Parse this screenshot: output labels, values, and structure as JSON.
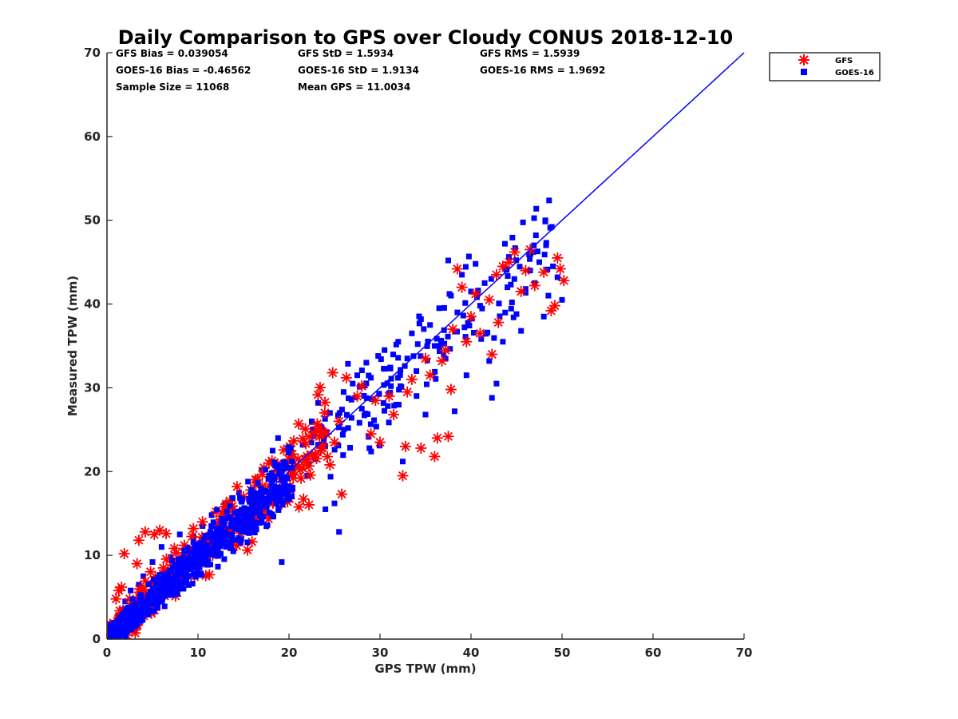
{
  "chart_data": {
    "type": "scatter",
    "title": "Daily Comparison to GPS over Cloudy CONUS 2018-12-10",
    "xlabel": "GPS TPW (mm)",
    "ylabel": "Measured TPW (mm)",
    "xlim": [
      0,
      70
    ],
    "ylim": [
      0,
      70
    ],
    "xticks": [
      0,
      10,
      20,
      30,
      40,
      50,
      60,
      70
    ],
    "yticks": [
      0,
      10,
      20,
      30,
      40,
      50,
      60,
      70
    ],
    "grid": false,
    "legend_position": "outside-top-right",
    "stats": [
      [
        "GFS Bias = 0.039054",
        "GFS StD = 1.5934",
        "GFS RMS = 1.5939"
      ],
      [
        "GOES-16 Bias = -0.46562",
        "GOES-16 StD = 1.9134",
        "GOES-16 RMS = 1.9692"
      ],
      [
        "Sample Size = 11068",
        "Mean GPS = 11.0034"
      ]
    ],
    "reference_line": {
      "x": [
        0,
        70
      ],
      "y": [
        0,
        70
      ],
      "color": "#0000ff"
    },
    "series": [
      {
        "name": "GFS",
        "marker": "asterisk",
        "color": "#ff0000",
        "sample_points": [
          [
            0.3,
            1.2
          ],
          [
            0.8,
            1.8
          ],
          [
            1.0,
            4.8
          ],
          [
            1.3,
            5.8
          ],
          [
            1.6,
            6.2
          ],
          [
            1.9,
            10.2
          ],
          [
            2.5,
            4.8
          ],
          [
            3.3,
            9.0
          ],
          [
            3.5,
            11.8
          ],
          [
            4.2,
            12.8
          ],
          [
            5.2,
            12.5
          ],
          [
            5.8,
            13.0
          ],
          [
            6.5,
            12.6
          ],
          [
            6.2,
            8.5
          ],
          [
            7.2,
            9.2
          ],
          [
            8.5,
            11.2
          ],
          [
            9.5,
            13.2
          ],
          [
            10.5,
            14.0
          ],
          [
            12.0,
            15.2
          ],
          [
            13.5,
            16.5
          ],
          [
            14.3,
            18.2
          ],
          [
            15.0,
            17.0
          ],
          [
            16.5,
            19.0
          ],
          [
            17.8,
            21.0
          ],
          [
            19.5,
            20.5
          ],
          [
            21.0,
            21.5
          ],
          [
            22.5,
            22.0
          ],
          [
            23.5,
            22.5
          ],
          [
            24.5,
            20.8
          ],
          [
            25.0,
            23.5
          ],
          [
            24.8,
            31.8
          ],
          [
            25.5,
            26.0
          ],
          [
            25.8,
            17.3
          ],
          [
            26.3,
            31.2
          ],
          [
            27.5,
            29.0
          ],
          [
            28.0,
            30.2
          ],
          [
            29.0,
            24.5
          ],
          [
            29.5,
            28.5
          ],
          [
            30.0,
            23.5
          ],
          [
            31.0,
            29.0
          ],
          [
            31.5,
            26.8
          ],
          [
            32.5,
            19.5
          ],
          [
            32.8,
            23.0
          ],
          [
            33.0,
            29.5
          ],
          [
            33.5,
            31.0
          ],
          [
            34.5,
            22.8
          ],
          [
            35.0,
            33.5
          ],
          [
            35.5,
            31.5
          ],
          [
            36.0,
            21.8
          ],
          [
            36.3,
            24.0
          ],
          [
            36.8,
            33.2
          ],
          [
            37.2,
            34.5
          ],
          [
            37.5,
            24.2
          ],
          [
            37.8,
            29.8
          ],
          [
            38.0,
            37.0
          ],
          [
            38.5,
            44.2
          ],
          [
            39.0,
            42.0
          ],
          [
            39.5,
            35.5
          ],
          [
            40.0,
            38.5
          ],
          [
            40.5,
            41.2
          ],
          [
            41.0,
            36.5
          ],
          [
            42.0,
            40.5
          ],
          [
            42.3,
            34.0
          ],
          [
            42.8,
            43.5
          ],
          [
            43.0,
            37.8
          ],
          [
            43.5,
            44.5
          ],
          [
            44.2,
            45.0
          ],
          [
            44.8,
            46.2
          ],
          [
            45.5,
            41.5
          ],
          [
            46.0,
            44.0
          ],
          [
            46.5,
            46.5
          ],
          [
            47.0,
            42.2
          ],
          [
            48.0,
            43.8
          ],
          [
            48.8,
            39.2
          ],
          [
            49.2,
            39.8
          ],
          [
            49.5,
            45.5
          ],
          [
            49.8,
            44.2
          ],
          [
            50.2,
            42.8
          ]
        ]
      },
      {
        "name": "GOES-16",
        "marker": "square",
        "color": "#0000ff",
        "sample_points": [
          [
            0.4,
            0.9
          ],
          [
            0.9,
            1.6
          ],
          [
            1.2,
            2.8
          ],
          [
            1.6,
            3.5
          ],
          [
            2.0,
            4.5
          ],
          [
            2.6,
            5.8
          ],
          [
            3.0,
            3.8
          ],
          [
            3.5,
            6.5
          ],
          [
            4.0,
            7.5
          ],
          [
            4.5,
            5.2
          ],
          [
            5.0,
            9.2
          ],
          [
            5.5,
            6.8
          ],
          [
            6.0,
            11.0
          ],
          [
            6.5,
            8.2
          ],
          [
            7.0,
            9.8
          ],
          [
            7.5,
            7.2
          ],
          [
            8.0,
            12.5
          ],
          [
            8.5,
            9.5
          ],
          [
            9.0,
            10.8
          ],
          [
            9.5,
            12.2
          ],
          [
            10.0,
            8.8
          ],
          [
            10.5,
            13.5
          ],
          [
            11.0,
            11.2
          ],
          [
            11.5,
            14.8
          ],
          [
            12.0,
            10.2
          ],
          [
            12.5,
            13.2
          ],
          [
            13.0,
            16.2
          ],
          [
            13.5,
            12.0
          ],
          [
            14.0,
            15.0
          ],
          [
            14.5,
            17.5
          ],
          [
            15.0,
            14.2
          ],
          [
            15.5,
            18.8
          ],
          [
            16.0,
            16.5
          ],
          [
            17.0,
            20.2
          ],
          [
            17.5,
            16.0
          ],
          [
            18.2,
            22.5
          ],
          [
            18.8,
            24.0
          ],
          [
            19.2,
            9.2
          ],
          [
            19.5,
            18.2
          ],
          [
            20.5,
            21.0
          ],
          [
            21.5,
            23.2
          ],
          [
            22.0,
            19.5
          ],
          [
            22.5,
            26.0
          ],
          [
            23.2,
            28.2
          ],
          [
            23.8,
            23.5
          ],
          [
            24.0,
            15.5
          ],
          [
            24.5,
            27.0
          ],
          [
            25.0,
            16.2
          ],
          [
            25.5,
            12.8
          ],
          [
            26.0,
            29.5
          ],
          [
            26.5,
            25.2
          ],
          [
            27.0,
            30.5
          ],
          [
            27.5,
            31.5
          ],
          [
            28.0,
            27.5
          ],
          [
            28.5,
            33.0
          ],
          [
            29.0,
            31.2
          ],
          [
            29.8,
            33.8
          ],
          [
            30.5,
            34.5
          ],
          [
            31.2,
            30.2
          ],
          [
            31.8,
            28.0
          ],
          [
            32.0,
            35.5
          ],
          [
            32.5,
            21.2
          ],
          [
            33.0,
            33.5
          ],
          [
            33.5,
            36.5
          ],
          [
            34.0,
            32.0
          ],
          [
            34.5,
            38.2
          ],
          [
            35.0,
            26.8
          ],
          [
            35.5,
            37.5
          ],
          [
            36.0,
            35.0
          ],
          [
            36.5,
            39.5
          ],
          [
            37.0,
            34.0
          ],
          [
            37.5,
            45.2
          ],
          [
            37.8,
            41.0
          ],
          [
            38.2,
            27.2
          ],
          [
            38.5,
            39.0
          ],
          [
            39.0,
            43.5
          ],
          [
            39.5,
            31.5
          ],
          [
            40.0,
            41.5
          ],
          [
            40.5,
            44.8
          ],
          [
            41.0,
            39.8
          ],
          [
            41.5,
            42.5
          ],
          [
            42.0,
            33.2
          ],
          [
            42.3,
            28.8
          ],
          [
            42.8,
            30.5
          ],
          [
            43.5,
            35.5
          ],
          [
            44.0,
            42.0
          ],
          [
            44.5,
            40.2
          ],
          [
            45.0,
            38.8
          ],
          [
            45.5,
            36.8
          ],
          [
            46.0,
            41.8
          ],
          [
            46.5,
            44.0
          ],
          [
            47.0,
            42.5
          ],
          [
            47.5,
            45.0
          ],
          [
            48.0,
            38.5
          ],
          [
            48.5,
            41.0
          ],
          [
            49.0,
            44.5
          ],
          [
            49.5,
            43.2
          ],
          [
            50.0,
            40.5
          ]
        ]
      }
    ]
  },
  "legend": {
    "items": [
      {
        "label": "GFS",
        "color": "#ff0000",
        "marker": "asterisk"
      },
      {
        "label": "GOES-16",
        "color": "#0000ff",
        "marker": "square"
      }
    ]
  }
}
